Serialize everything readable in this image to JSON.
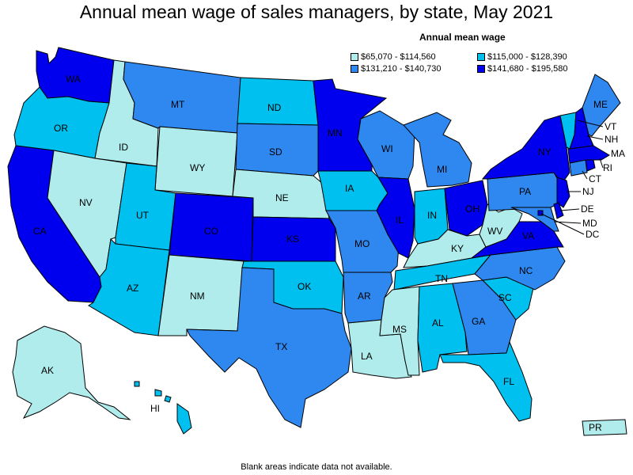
{
  "title": "Annual mean wage of sales managers, by state, May 2021",
  "legend": {
    "title": "Annual mean wage",
    "items": [
      {
        "label": "$65,070 - $114,560",
        "color": "#b0ecec"
      },
      {
        "label": "$115,000 - $128,390",
        "color": "#00c0f0"
      },
      {
        "label": "$131,210 - $140,730",
        "color": "#2f88f0"
      },
      {
        "label": "$141,680 - $195,580",
        "color": "#0000ee"
      }
    ]
  },
  "footnote": "Blank areas indicate data not available.",
  "states": [
    {
      "code": "WA",
      "tier": 3
    },
    {
      "code": "OR",
      "tier": 1
    },
    {
      "code": "CA",
      "tier": 3
    },
    {
      "code": "ID",
      "tier": 0
    },
    {
      "code": "NV",
      "tier": 0
    },
    {
      "code": "MT",
      "tier": 2
    },
    {
      "code": "WY",
      "tier": 0
    },
    {
      "code": "UT",
      "tier": 1
    },
    {
      "code": "AZ",
      "tier": 1
    },
    {
      "code": "CO",
      "tier": 3
    },
    {
      "code": "NM",
      "tier": 0
    },
    {
      "code": "ND",
      "tier": 1
    },
    {
      "code": "SD",
      "tier": 2
    },
    {
      "code": "NE",
      "tier": 0
    },
    {
      "code": "KS",
      "tier": 3
    },
    {
      "code": "OK",
      "tier": 1
    },
    {
      "code": "TX",
      "tier": 2
    },
    {
      "code": "MN",
      "tier": 3
    },
    {
      "code": "IA",
      "tier": 1
    },
    {
      "code": "MO",
      "tier": 2
    },
    {
      "code": "AR",
      "tier": 2
    },
    {
      "code": "LA",
      "tier": 0
    },
    {
      "code": "WI",
      "tier": 2
    },
    {
      "code": "IL",
      "tier": 3
    },
    {
      "code": "MI",
      "tier": 2
    },
    {
      "code": "IN",
      "tier": 1
    },
    {
      "code": "OH",
      "tier": 3
    },
    {
      "code": "KY",
      "tier": 0
    },
    {
      "code": "TN",
      "tier": 1
    },
    {
      "code": "MS",
      "tier": 0
    },
    {
      "code": "AL",
      "tier": 1
    },
    {
      "code": "GA",
      "tier": 2
    },
    {
      "code": "FL",
      "tier": 1
    },
    {
      "code": "SC",
      "tier": 1
    },
    {
      "code": "NC",
      "tier": 2
    },
    {
      "code": "VA",
      "tier": 3
    },
    {
      "code": "WV",
      "tier": 0
    },
    {
      "code": "PA",
      "tier": 2
    },
    {
      "code": "NY",
      "tier": 3
    },
    {
      "code": "VT",
      "tier": 1
    },
    {
      "code": "NH",
      "tier": 3
    },
    {
      "code": "ME",
      "tier": 2
    },
    {
      "code": "MA",
      "tier": 3
    },
    {
      "code": "RI",
      "tier": 3
    },
    {
      "code": "CT",
      "tier": 2
    },
    {
      "code": "NJ",
      "tier": 3
    },
    {
      "code": "DE",
      "tier": 3
    },
    {
      "code": "MD",
      "tier": 2
    },
    {
      "code": "DC",
      "tier": 3
    },
    {
      "code": "AK",
      "tier": 0
    },
    {
      "code": "HI",
      "tier": 1
    },
    {
      "code": "PR",
      "tier": 0
    }
  ]
}
